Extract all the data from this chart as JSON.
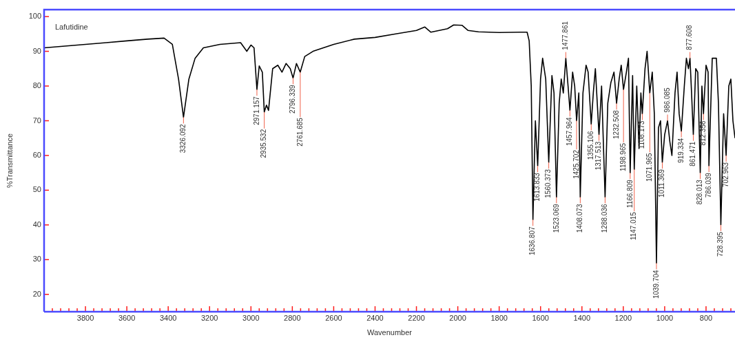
{
  "chart_data": {
    "type": "line",
    "title": "Lafutidine",
    "xlabel": "Wavenumber",
    "ylabel": "%Transmittance",
    "color": "#000000",
    "marker": "none",
    "x": [
      4000,
      3900,
      3800,
      3700,
      3600,
      3500,
      3420,
      3380,
      3350,
      3326.092,
      3300,
      3270,
      3230,
      3150,
      3050,
      3020,
      3000,
      2985,
      2971.157,
      2960,
      2945,
      2935.532,
      2925,
      2915,
      2895,
      2870,
      2850,
      2830,
      2810,
      2796.339,
      2780,
      2761.685,
      2740,
      2700,
      2600,
      2500,
      2400,
      2300,
      2200,
      2160,
      2130,
      2050,
      2020,
      1980,
      1950,
      1900,
      1800,
      1700,
      1665,
      1655,
      1645,
      1636.807,
      1625,
      1613.833,
      1600,
      1590,
      1575,
      1560.373,
      1545,
      1535,
      1523.069,
      1510,
      1500,
      1490,
      1477.861,
      1467,
      1457.964,
      1445,
      1435,
      1425.702,
      1415,
      1408.073,
      1395,
      1380,
      1370,
      1355.106,
      1345,
      1335,
      1317.513,
      1305,
      1288.036,
      1275,
      1260,
      1245,
      1232.508,
      1220,
      1210,
      1198.965,
      1185,
      1175,
      1166.809,
      1155,
      1147.015,
      1135,
      1124,
      1115,
      1108.173,
      1095,
      1085,
      1071.965,
      1060,
      1050,
      1039.704,
      1030,
      1020,
      1011.369,
      1000,
      986.085,
      975,
      965,
      950,
      940,
      930,
      919.334,
      905,
      895,
      885,
      877.608,
      870,
      861.471,
      850,
      840,
      828.013,
      820,
      812.356,
      800,
      790,
      786.039,
      770,
      750,
      740,
      728.395,
      715,
      702.963,
      690,
      680,
      670,
      660
    ],
    "values": [
      91,
      91.5,
      92,
      92.5,
      93,
      93.5,
      93.8,
      92,
      82,
      71,
      82,
      88,
      91,
      92,
      92.5,
      90,
      91.8,
      91,
      79,
      85.8,
      84,
      72.5,
      74.5,
      73,
      85,
      86,
      84,
      86.5,
      85,
      82.3,
      86.5,
      84,
      88.5,
      90,
      92,
      93.5,
      94,
      95,
      96,
      97,
      95.5,
      96.5,
      97.6,
      97.5,
      96,
      95.6,
      95.4,
      95.5,
      95.5,
      93,
      80,
      41.5,
      70,
      57,
      82,
      88,
      82,
      58,
      83,
      78,
      48,
      75,
      82,
      78,
      88,
      80,
      73,
      84,
      80,
      70,
      78,
      48,
      78,
      86,
      84,
      69,
      78,
      85,
      66,
      80,
      48,
      75,
      81,
      84,
      75,
      82,
      86,
      79,
      84,
      88,
      55,
      83,
      56,
      80,
      62,
      78,
      72,
      85,
      90,
      78,
      84,
      72,
      29,
      68,
      70,
      58,
      66,
      70,
      64,
      60,
      78,
      84,
      72,
      67,
      80,
      88,
      85,
      88,
      78,
      66,
      85,
      84,
      55,
      80,
      72,
      86,
      84,
      57,
      88,
      88,
      75,
      40,
      72,
      60,
      80,
      82,
      70,
      65
    ],
    "xlim": [
      4000,
      660
    ],
    "ylim": [
      15,
      102
    ],
    "yticks": [
      20,
      30,
      40,
      50,
      60,
      70,
      80,
      90,
      100
    ],
    "xticks": [
      {
        "value": 3960,
        "label": null
      },
      {
        "value": 3920,
        "label": null
      },
      {
        "value": 3880,
        "label": null
      },
      {
        "value": 3840,
        "label": null
      },
      3800,
      {
        "value": 3760,
        "label": null
      },
      {
        "value": 3720,
        "label": null
      },
      {
        "value": 3680,
        "label": null
      },
      {
        "value": 3640,
        "label": null
      },
      3600,
      {
        "value": 3560,
        "label": null
      },
      {
        "value": 3520,
        "label": null
      },
      {
        "value": 3480,
        "label": null
      },
      {
        "value": 3440,
        "label": null
      },
      3400,
      {
        "value": 3360,
        "label": null
      },
      {
        "value": 3320,
        "label": null
      },
      {
        "value": 3280,
        "label": null
      },
      {
        "value": 3240,
        "label": null
      },
      3200,
      {
        "value": 3160,
        "label": null
      },
      {
        "value": 3120,
        "label": null
      },
      {
        "value": 3080,
        "label": null
      },
      {
        "value": 3040,
        "label": null
      },
      3000,
      {
        "value": 2960,
        "label": null
      },
      {
        "value": 2920,
        "label": null
      },
      {
        "value": 2880,
        "label": null
      },
      {
        "value": 2840,
        "label": null
      },
      2800,
      {
        "value": 2760,
        "label": null
      },
      {
        "value": 2720,
        "label": null
      },
      {
        "value": 2680,
        "label": null
      },
      {
        "value": 2640,
        "label": null
      },
      2600,
      {
        "value": 2560,
        "label": null
      },
      {
        "value": 2520,
        "label": null
      },
      {
        "value": 2480,
        "label": null
      },
      {
        "value": 2440,
        "label": null
      },
      2400,
      {
        "value": 2360,
        "label": null
      },
      {
        "value": 2320,
        "label": null
      },
      {
        "value": 2280,
        "label": null
      },
      {
        "value": 2240,
        "label": null
      },
      2200,
      {
        "value": 2160,
        "label": null
      },
      {
        "value": 2120,
        "label": null
      },
      {
        "value": 2080,
        "label": null
      },
      {
        "value": 2040,
        "label": null
      },
      2000,
      {
        "value": 1960,
        "label": null
      },
      {
        "value": 1920,
        "label": null
      },
      {
        "value": 1880,
        "label": null
      },
      {
        "value": 1840,
        "label": null
      },
      1800,
      {
        "value": 1760,
        "label": null
      },
      {
        "value": 1720,
        "label": null
      },
      {
        "value": 1680,
        "label": null
      },
      {
        "value": 1640,
        "label": null
      },
      1600,
      {
        "value": 1560,
        "label": null
      },
      {
        "value": 1520,
        "label": null
      },
      {
        "value": 1480,
        "label": null
      },
      {
        "value": 1440,
        "label": null
      },
      1400,
      {
        "value": 1360,
        "label": null
      },
      {
        "value": 1320,
        "label": null
      },
      {
        "value": 1280,
        "label": null
      },
      {
        "value": 1240,
        "label": null
      },
      1200,
      {
        "value": 1160,
        "label": null
      },
      {
        "value": 1120,
        "label": null
      },
      {
        "value": 1080,
        "label": null
      },
      {
        "value": 1040,
        "label": null
      },
      1000,
      {
        "value": 960,
        "label": null
      },
      {
        "value": 920,
        "label": null
      },
      {
        "value": 880,
        "label": null
      },
      {
        "value": 840,
        "label": null
      },
      800,
      {
        "value": 760,
        "label": null
      },
      {
        "value": 720,
        "label": null
      },
      {
        "value": 680,
        "label": null
      }
    ],
    "annotations": [
      {
        "text": "3326.092",
        "x": 3326.092,
        "y": 71
      },
      {
        "text": "2971.157",
        "x": 2971.157,
        "y": 79
      },
      {
        "text": "2935.532",
        "x": 2935.532,
        "y": 72.5
      },
      {
        "text": "2796.339",
        "x": 2796.339,
        "y": 82.3
      },
      {
        "text": "2761.685",
        "x": 2761.685,
        "y": 84
      },
      {
        "text": "1636.807",
        "x": 1636.807,
        "y": 41.5
      },
      {
        "text": "1613.833",
        "x": 1613.833,
        "y": 57
      },
      {
        "text": "1560.373",
        "x": 1560.373,
        "y": 58
      },
      {
        "text": "1523.069",
        "x": 1523.069,
        "y": 48
      },
      {
        "text": "1477.861",
        "x": 1477.861,
        "y": 88
      },
      {
        "text": "1457.964",
        "x": 1457.964,
        "y": 73
      },
      {
        "text": "1425.702",
        "x": 1425.702,
        "y": 70
      },
      {
        "text": "1408.073",
        "x": 1408.073,
        "y": 48
      },
      {
        "text": "1355.106",
        "x": 1355.106,
        "y": 69
      },
      {
        "text": "1317.513",
        "x": 1317.513,
        "y": 66
      },
      {
        "text": "1288.036",
        "x": 1288.036,
        "y": 48
      },
      {
        "text": "1232.508",
        "x": 1232.508,
        "y": 75
      },
      {
        "text": "1198.965",
        "x": 1198.965,
        "y": 79
      },
      {
        "text": "1166.809",
        "x": 1166.809,
        "y": 55
      },
      {
        "text": "1147.015",
        "x": 1147.015,
        "y": 56
      },
      {
        "text": "1108.173",
        "x": 1108.173,
        "y": 72
      },
      {
        "text": "1071.965",
        "x": 1071.965,
        "y": 78
      },
      {
        "text": "1039.704",
        "x": 1039.704,
        "y": 29
      },
      {
        "text": "1011.369",
        "x": 1011.369,
        "y": 58
      },
      {
        "text": "986.085",
        "x": 986.085,
        "y": 70
      },
      {
        "text": "919.334",
        "x": 919.334,
        "y": 67
      },
      {
        "text": "877.608",
        "x": 877.608,
        "y": 88
      },
      {
        "text": "861.471",
        "x": 861.471,
        "y": 66
      },
      {
        "text": "828.013",
        "x": 828.013,
        "y": 55
      },
      {
        "text": "812.356",
        "x": 812.356,
        "y": 72
      },
      {
        "text": "786.039",
        "x": 786.039,
        "y": 57
      },
      {
        "text": "728.395",
        "x": 728.395,
        "y": 40
      },
      {
        "text": "702.963",
        "x": 702.963,
        "y": 60
      }
    ]
  }
}
